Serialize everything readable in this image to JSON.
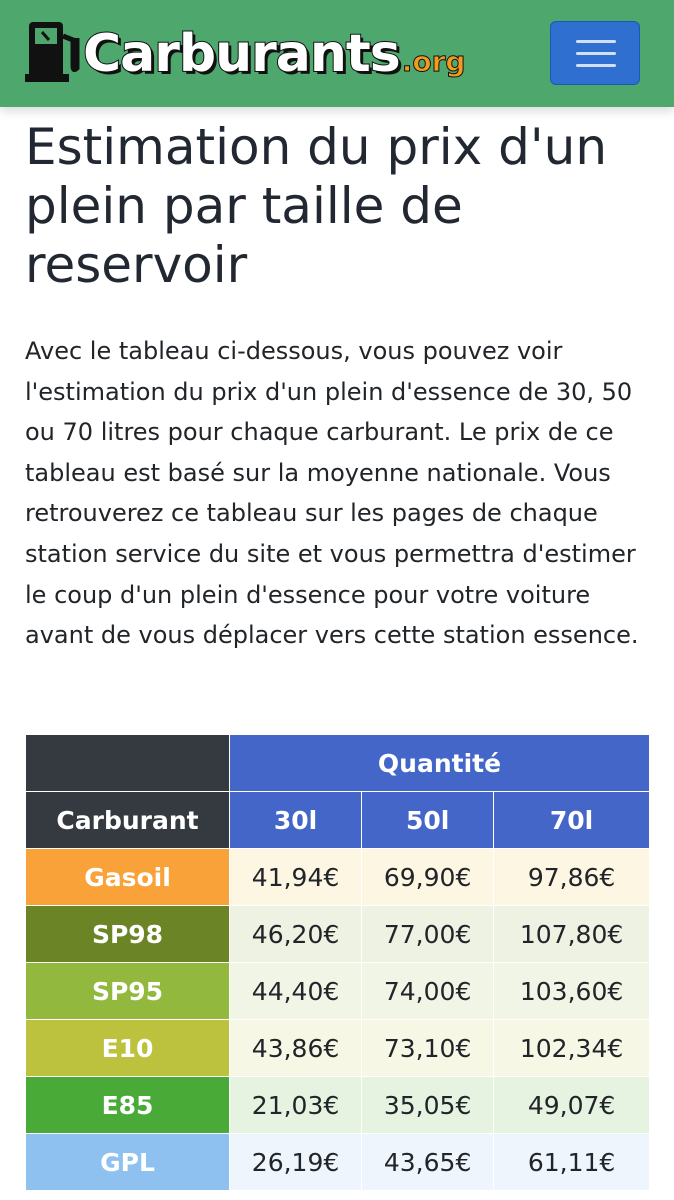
{
  "header": {
    "logo": "Carburants",
    "logo_suffix": ".org"
  },
  "title": "Estimation du prix d'un plein par taille de reservoir",
  "intro": "Avec le tableau ci-dessous, vous pouvez voir l'estimation du prix d'un plein d'essence de 30, 50 ou 70 litres pour chaque carburant. Le prix de ce tableau est basé sur la moyenne nationale. Vous retrouverez ce tableau sur les pages de chaque station service du site et vous permettra d'estimer le coup d'un plein d'essence pour votre voiture avant de vous déplacer vers cette station essence.",
  "table": {
    "group_header": "Quantité",
    "columns": [
      "Carburant",
      "30l",
      "50l",
      "70l"
    ],
    "rows": [
      [
        "Gasoil",
        "41,94€",
        "69,90€",
        "97,86€"
      ],
      [
        "SP98",
        "46,20€",
        "77,00€",
        "107,80€"
      ],
      [
        "SP95",
        "44,40€",
        "74,00€",
        "103,60€"
      ],
      [
        "E10",
        "43,86€",
        "73,10€",
        "102,34€"
      ],
      [
        "E85",
        "21,03€",
        "35,05€",
        "49,07€"
      ],
      [
        "GPL",
        "26,19€",
        "43,65€",
        "61,11€"
      ]
    ]
  }
}
